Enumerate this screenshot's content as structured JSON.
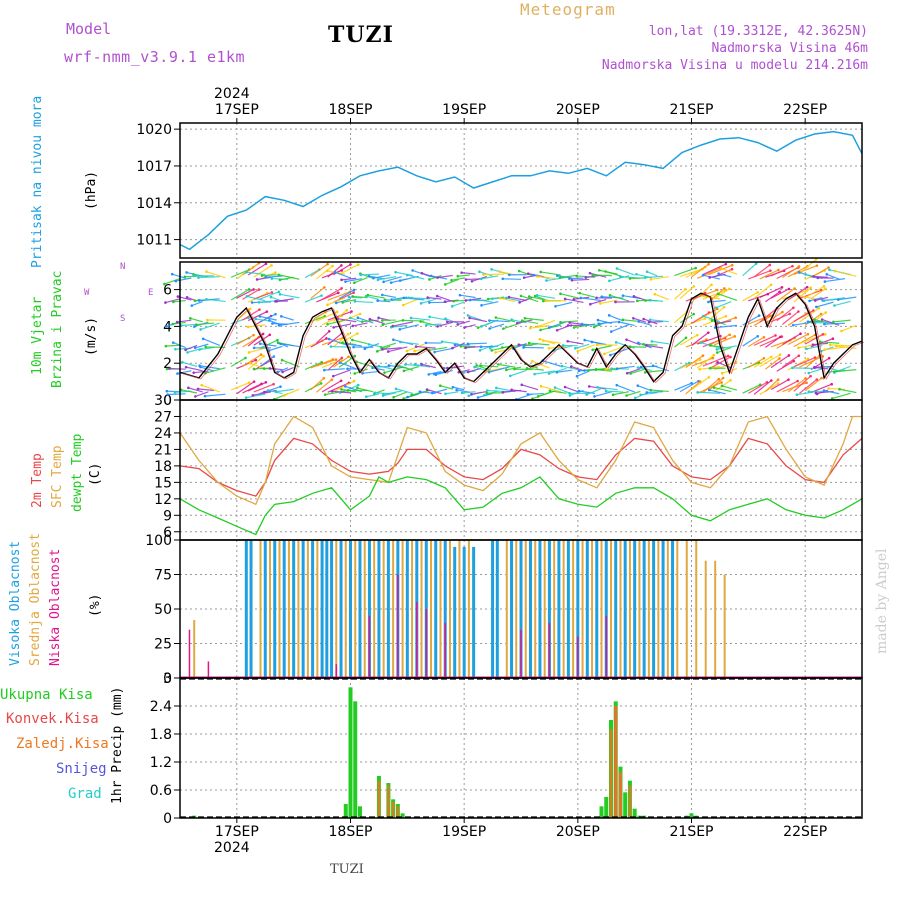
{
  "header": {
    "model_label": "Model",
    "model_name": "wrf-nmm_v3.9.1 e1km",
    "station": "TUZI",
    "title": "Meteogram",
    "coords": "lon,lat (19.3312E, 42.3625N)",
    "elevation": "Nadmorska Visina 46m",
    "model_elevation": "Nadmorska Visina u modelu 214.216m"
  },
  "footer": {
    "station": "TUZI",
    "credit": "made by Angel"
  },
  "colors": {
    "pressure": "#1ea0e0",
    "temp2m": "#e84848",
    "sfc_temp": "#e0a840",
    "dewpoint": "#22cc22",
    "high_cloud": "#1ea0e0",
    "mid_cloud": "#e0a840",
    "low_cloud": "#e0148c",
    "total_precip": "#22cc22",
    "conv_precip": "#e84848",
    "stratiform_precip": "#ee7722",
    "snow": "#5555dd",
    "hail": "#22cccc",
    "wind_speed": "#000000"
  },
  "time_axis": {
    "year": "2024",
    "days": [
      "17SEP",
      "18SEP",
      "19SEP",
      "20SEP",
      "21SEP",
      "22SEP"
    ]
  },
  "chart_data": [
    {
      "type": "line",
      "ylabel": [
        "Pritisak na nivou mora",
        "(hPa)"
      ],
      "ylim": [
        1009.5,
        1020.5
      ],
      "yticks": [
        1011,
        1014,
        1017,
        1020
      ],
      "x_unit": "hours from 16 SEP 12:00",
      "x_range": [
        0,
        144
      ],
      "grid": true,
      "series": [
        {
          "name": "Pritisak na nivou mora",
          "x": [
            0,
            2,
            6,
            10,
            14,
            18,
            22,
            26,
            30,
            34,
            38,
            42,
            46,
            50,
            54,
            58,
            62,
            66,
            70,
            74,
            78,
            82,
            86,
            90,
            94,
            98,
            102,
            106,
            110,
            114,
            118,
            122,
            126,
            130,
            134,
            138,
            142,
            144
          ],
          "values": [
            1010.6,
            1010.2,
            1011.4,
            1012.9,
            1013.4,
            1014.5,
            1014.2,
            1013.7,
            1014.6,
            1015.3,
            1016.2,
            1016.6,
            1016.9,
            1016.2,
            1015.7,
            1016.1,
            1015.2,
            1015.7,
            1016.2,
            1016.2,
            1016.6,
            1016.4,
            1016.8,
            1016.2,
            1017.3,
            1017.1,
            1016.8,
            1018.1,
            1018.7,
            1019.2,
            1019.3,
            1018.9,
            1018.2,
            1019.1,
            1019.6,
            1019.8,
            1019.5,
            1018.0
          ]
        }
      ]
    },
    {
      "type": "line",
      "ylabel": [
        "10m Vjetar",
        "Brzina i Pravac",
        "(m/s)"
      ],
      "ylim": [
        0,
        7.5
      ],
      "yticks": [
        0,
        2,
        4,
        6
      ],
      "direction_legend": [
        "W",
        "E",
        "N",
        "S"
      ],
      "grid": true,
      "series": [
        {
          "name": "Brzina",
          "x": [
            0,
            4,
            8,
            10,
            12,
            14,
            16,
            18,
            20,
            22,
            24,
            26,
            28,
            30,
            32,
            34,
            36,
            38,
            40,
            42,
            44,
            46,
            48,
            50,
            52,
            54,
            56,
            58,
            60,
            62,
            64,
            66,
            68,
            70,
            72,
            74,
            76,
            78,
            80,
            82,
            84,
            86,
            88,
            90,
            92,
            94,
            96,
            98,
            100,
            102,
            104,
            106,
            108,
            110,
            112,
            114,
            116,
            118,
            120,
            122,
            124,
            126,
            128,
            130,
            132,
            134,
            136,
            138,
            140,
            142,
            144
          ],
          "values": [
            1.5,
            1.2,
            2.5,
            3.5,
            4.5,
            5.0,
            4.0,
            3.0,
            1.5,
            1.2,
            1.5,
            3.5,
            4.5,
            4.8,
            5.0,
            3.8,
            2.5,
            1.5,
            2.2,
            1.5,
            1.2,
            2.0,
            2.5,
            2.5,
            2.8,
            2.2,
            1.5,
            2.0,
            1.2,
            1.0,
            1.5,
            2.0,
            2.5,
            3.0,
            2.2,
            1.8,
            2.0,
            2.5,
            3.0,
            2.5,
            2.0,
            1.8,
            2.8,
            1.8,
            2.5,
            3.0,
            2.5,
            1.8,
            1.0,
            1.5,
            3.5,
            4.0,
            5.5,
            5.8,
            5.6,
            3.0,
            1.5,
            3.0,
            4.5,
            5.5,
            4.0,
            5.0,
            5.5,
            5.8,
            5.2,
            4.0,
            1.2,
            2.0,
            2.5,
            3.0,
            3.2
          ]
        }
      ]
    },
    {
      "type": "line",
      "ylabel": [
        "2m Temp",
        "SFC Temp",
        "dewpt Temp",
        "(C)"
      ],
      "ylim": [
        4.5,
        30
      ],
      "yticks": [
        6,
        9,
        12,
        15,
        18,
        21,
        24,
        27,
        30
      ],
      "grid": true,
      "series": [
        {
          "name": "2m Temp",
          "x": [
            0,
            4,
            8,
            12,
            16,
            18,
            20,
            24,
            28,
            32,
            36,
            40,
            44,
            46,
            48,
            52,
            56,
            60,
            64,
            68,
            72,
            76,
            80,
            84,
            88,
            92,
            96,
            100,
            104,
            108,
            112,
            116,
            120,
            124,
            128,
            132,
            136,
            140,
            144
          ],
          "values": [
            18,
            17.5,
            15,
            13.5,
            12.5,
            15,
            19,
            23,
            22,
            19,
            17,
            16.5,
            17,
            18.5,
            21,
            21,
            18,
            16,
            15.5,
            17.5,
            21,
            20,
            17.5,
            16,
            15.5,
            20,
            23,
            22.5,
            18,
            16,
            15.5,
            18,
            23,
            22,
            18,
            15.5,
            15,
            20,
            23
          ]
        },
        {
          "name": "SFC Temp",
          "x": [
            0,
            4,
            8,
            12,
            16,
            18,
            20,
            24,
            28,
            32,
            36,
            40,
            44,
            46,
            48,
            52,
            56,
            60,
            64,
            68,
            72,
            76,
            80,
            84,
            88,
            92,
            96,
            100,
            104,
            108,
            112,
            116,
            120,
            124,
            128,
            132,
            136,
            140,
            142,
            144
          ],
          "values": [
            24,
            19,
            15,
            12.5,
            11,
            15,
            22,
            27,
            25,
            18,
            16,
            15.5,
            15,
            20,
            25,
            24,
            17,
            14.5,
            13.5,
            16.5,
            22,
            24,
            19,
            15.5,
            14,
            19,
            26,
            25,
            19,
            15,
            14,
            18,
            26,
            27,
            21,
            16,
            14.5,
            22,
            27,
            27
          ]
        },
        {
          "name": "dewpt Temp",
          "x": [
            0,
            4,
            8,
            12,
            16,
            18,
            20,
            24,
            28,
            32,
            36,
            40,
            42,
            44,
            48,
            52,
            56,
            60,
            64,
            68,
            72,
            76,
            80,
            84,
            88,
            92,
            96,
            100,
            104,
            108,
            112,
            116,
            120,
            124,
            128,
            132,
            136,
            140,
            144
          ],
          "values": [
            12,
            10,
            8.5,
            7,
            5.5,
            9,
            11,
            11.5,
            13,
            14,
            10,
            12.5,
            16,
            15,
            16,
            15.5,
            14,
            10,
            10.5,
            13,
            14,
            16,
            12,
            11,
            10.5,
            13,
            14,
            14,
            12,
            9,
            8,
            10,
            11,
            12,
            10,
            9,
            8.5,
            10,
            12
          ]
        }
      ]
    },
    {
      "type": "bar",
      "ylabel": [
        "Visoka Oblacnost",
        "Srednja Oblacnost",
        "Niska Oblacnost",
        "(%)"
      ],
      "ylim": [
        0,
        100
      ],
      "yticks": [
        0,
        25,
        50,
        75,
        100
      ],
      "grid": true,
      "series": [
        {
          "name": "Visoka Oblacnost",
          "x": [
            14,
            15,
            18,
            20,
            22,
            24,
            26,
            28,
            30,
            31,
            32,
            34,
            36,
            38,
            40,
            42,
            44,
            46,
            48,
            50,
            52,
            54,
            56,
            58,
            60,
            62,
            66,
            67,
            70,
            72,
            74,
            76,
            78,
            80,
            82,
            84,
            86,
            88,
            90,
            92,
            94,
            96,
            98,
            100,
            102,
            104
          ],
          "values": [
            100,
            100,
            100,
            100,
            100,
            100,
            100,
            100,
            100,
            100,
            100,
            100,
            100,
            100,
            100,
            100,
            100,
            100,
            100,
            100,
            100,
            100,
            100,
            95,
            95,
            95,
            100,
            100,
            100,
            100,
            100,
            100,
            100,
            100,
            100,
            100,
            100,
            100,
            100,
            100,
            100,
            100,
            100,
            100,
            100,
            100
          ]
        },
        {
          "name": "Srednja Oblacnost",
          "x": [
            3,
            17,
            19,
            21,
            23,
            25,
            27,
            29,
            33,
            35,
            37,
            39,
            41,
            43,
            45,
            47,
            49,
            51,
            53,
            55,
            57,
            59,
            61,
            69,
            71,
            73,
            75,
            77,
            79,
            81,
            83,
            85,
            87,
            89,
            91,
            93,
            95,
            97,
            99,
            101,
            103,
            105,
            107,
            109,
            111,
            113,
            115
          ],
          "values": [
            42,
            100,
            100,
            100,
            100,
            100,
            100,
            100,
            100,
            100,
            100,
            100,
            100,
            100,
            100,
            100,
            100,
            100,
            100,
            100,
            100,
            100,
            100,
            100,
            100,
            100,
            100,
            100,
            100,
            100,
            100,
            100,
            100,
            100,
            100,
            100,
            100,
            100,
            100,
            100,
            100,
            100,
            100,
            100,
            85,
            85,
            75
          ]
        },
        {
          "name": "Niska Oblacnost",
          "x": [
            2,
            6,
            33,
            40,
            46,
            50,
            52,
            56,
            72,
            78,
            84,
            90
          ],
          "values": [
            35,
            12,
            10,
            45,
            75,
            55,
            50,
            40,
            35,
            40,
            30,
            45
          ]
        }
      ]
    },
    {
      "type": "bar",
      "ylabel": [
        "Ukupna Kisa",
        "Konvek.Kisa",
        "Zaledj.Kisa",
        "Snijeg",
        "Grad",
        "1hr Precip (mm)"
      ],
      "ylim": [
        0,
        3
      ],
      "yticks": [
        0,
        0.6,
        1.2,
        1.8,
        2.4,
        3
      ],
      "grid": true,
      "series": [
        {
          "name": "Ukupna Kisa",
          "x": [
            3,
            35,
            36,
            37,
            38,
            42,
            44,
            45,
            46,
            47,
            89,
            90,
            91,
            92,
            93,
            94,
            95,
            96,
            97,
            98,
            107,
            108,
            109
          ],
          "values": [
            0.05,
            0.3,
            2.8,
            2.5,
            0.25,
            0.9,
            0.75,
            0.4,
            0.3,
            0.1,
            0.25,
            0.45,
            2.1,
            2.5,
            1.1,
            0.55,
            0.8,
            0.2,
            0.05,
            0.05,
            0.05,
            0.1,
            0.05
          ]
        },
        {
          "name": "Konvek.Kisa",
          "x": [
            92,
            93
          ],
          "values": [
            2.4,
            0.9
          ]
        },
        {
          "name": "Zaledj.Kisa",
          "x": [
            42,
            44,
            45,
            46,
            91,
            92,
            93,
            95
          ],
          "values": [
            0.8,
            0.7,
            0.35,
            0.25,
            1.9,
            2.4,
            1.0,
            0.7
          ]
        }
      ]
    }
  ]
}
